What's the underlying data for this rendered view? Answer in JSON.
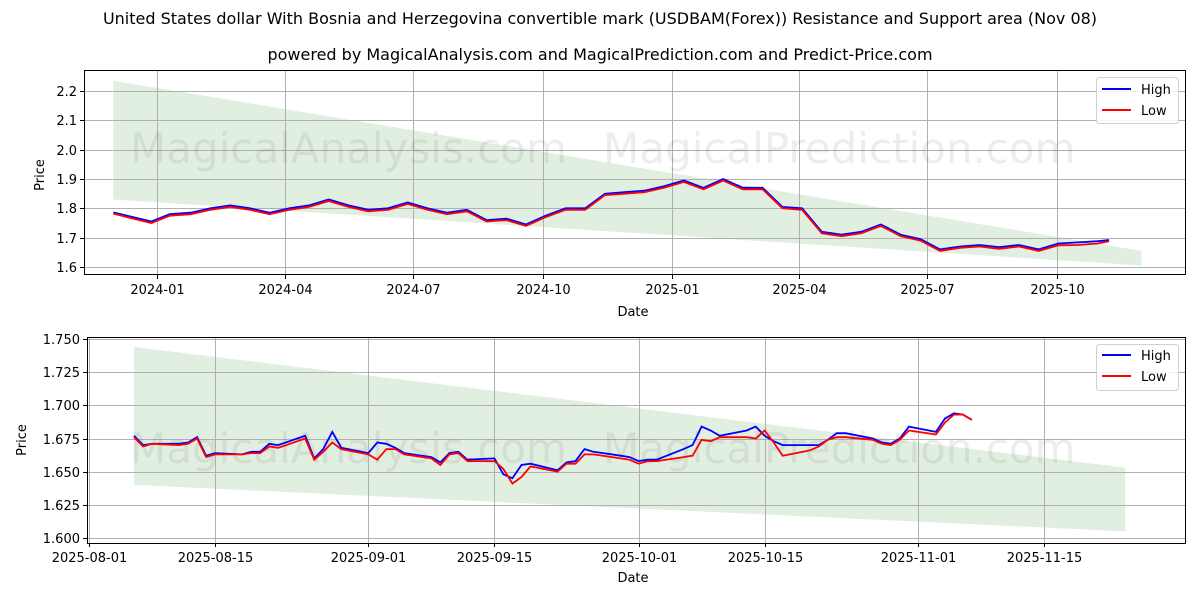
{
  "header": {
    "title": "United States dollar With Bosnia and Herzegovina convertible mark (USDBAM(Forex)) Resistance and Support area (Nov 08)",
    "subtitle": "powered by MagicalAnalysis.com and MagicalPrediction.com and Predict-Price.com"
  },
  "watermarks": [
    "MagicalAnalysis.com",
    "MagicalPrediction.com"
  ],
  "colors": {
    "high": "#0000ff",
    "low": "#ff0000",
    "band": "#e1efe1",
    "grid": "#b0b0b0"
  },
  "chart_data": [
    {
      "type": "line",
      "title": "",
      "xlabel": "Date",
      "ylabel": "Price",
      "ylim": [
        1.57,
        2.26
      ],
      "grid": true,
      "legend_position": "upper right",
      "legend": [
        "High",
        "Low"
      ],
      "x_tick_labels": [
        "2024-01",
        "2024-04",
        "2024-07",
        "2024-10",
        "2025-01",
        "2025-04",
        "2025-07",
        "2025-10"
      ],
      "y_tick_labels": [
        "1.6",
        "1.7",
        "1.8",
        "1.9",
        "2.0",
        "2.1",
        "2.2"
      ],
      "band": {
        "label": "Resistance and Support area",
        "x_start": "2023-12-01",
        "x_end": "2025-11-30",
        "upper_start": 2.235,
        "upper_end": 1.655,
        "lower_start": 1.83,
        "lower_end": 1.605
      },
      "x": [
        "2023-12-01",
        "2023-12-15",
        "2023-12-28",
        "2024-01-10",
        "2024-01-25",
        "2024-02-08",
        "2024-02-22",
        "2024-03-07",
        "2024-03-21",
        "2024-04-04",
        "2024-04-18",
        "2024-05-02",
        "2024-05-16",
        "2024-05-30",
        "2024-06-13",
        "2024-06-27",
        "2024-07-11",
        "2024-07-25",
        "2024-08-08",
        "2024-08-22",
        "2024-09-05",
        "2024-09-19",
        "2024-10-03",
        "2024-10-17",
        "2024-10-31",
        "2024-11-14",
        "2024-11-28",
        "2024-12-12",
        "2024-12-26",
        "2025-01-09",
        "2025-01-23",
        "2025-02-06",
        "2025-02-20",
        "2025-03-06",
        "2025-03-20",
        "2025-04-03",
        "2025-04-17",
        "2025-05-01",
        "2025-05-15",
        "2025-05-29",
        "2025-06-12",
        "2025-06-26",
        "2025-07-10",
        "2025-07-24",
        "2025-08-07",
        "2025-08-21",
        "2025-09-04",
        "2025-09-18",
        "2025-10-02",
        "2025-10-16",
        "2025-10-30",
        "2025-11-07"
      ],
      "series": [
        {
          "name": "High",
          "values": [
            1.786,
            1.77,
            1.755,
            1.78,
            1.785,
            1.8,
            1.81,
            1.8,
            1.785,
            1.8,
            1.81,
            1.83,
            1.81,
            1.795,
            1.8,
            1.82,
            1.8,
            1.785,
            1.795,
            1.76,
            1.765,
            1.745,
            1.775,
            1.8,
            1.8,
            1.85,
            1.855,
            1.86,
            1.875,
            1.895,
            1.87,
            1.9,
            1.87,
            1.87,
            1.805,
            1.8,
            1.72,
            1.71,
            1.72,
            1.745,
            1.71,
            1.695,
            1.66,
            1.67,
            1.675,
            1.668,
            1.675,
            1.66,
            1.68,
            1.684,
            1.688,
            1.692
          ]
        },
        {
          "name": "Low",
          "values": [
            1.782,
            1.765,
            1.75,
            1.775,
            1.78,
            1.795,
            1.805,
            1.795,
            1.78,
            1.795,
            1.805,
            1.825,
            1.805,
            1.79,
            1.795,
            1.815,
            1.795,
            1.78,
            1.79,
            1.755,
            1.76,
            1.74,
            1.77,
            1.795,
            1.795,
            1.845,
            1.85,
            1.855,
            1.87,
            1.89,
            1.865,
            1.895,
            1.865,
            1.865,
            1.8,
            1.795,
            1.715,
            1.705,
            1.715,
            1.74,
            1.705,
            1.69,
            1.655,
            1.665,
            1.67,
            1.662,
            1.67,
            1.655,
            1.674,
            1.675,
            1.68,
            1.688
          ]
        }
      ]
    },
    {
      "type": "line",
      "title": "",
      "xlabel": "Date",
      "ylabel": "Price",
      "ylim": [
        1.599,
        1.751
      ],
      "grid": true,
      "legend_position": "upper right",
      "legend": [
        "High",
        "Low"
      ],
      "x_tick_labels": [
        "2025-08-01",
        "2025-08-15",
        "2025-09-01",
        "2025-09-15",
        "2025-10-01",
        "2025-10-15",
        "2025-11-01",
        "2025-11-15"
      ],
      "y_tick_labels": [
        "1.600",
        "1.625",
        "1.650",
        "1.675",
        "1.700",
        "1.725",
        "1.750"
      ],
      "band": {
        "label": "Resistance and Support area",
        "x_start": "2025-08-06",
        "x_end": "2025-11-24",
        "upper_start": 1.744,
        "upper_end": 1.653,
        "lower_start": 1.64,
        "lower_end": 1.605
      },
      "x": [
        "2025-08-06",
        "2025-08-07",
        "2025-08-08",
        "2025-08-11",
        "2025-08-12",
        "2025-08-13",
        "2025-08-14",
        "2025-08-15",
        "2025-08-18",
        "2025-08-19",
        "2025-08-20",
        "2025-08-21",
        "2025-08-22",
        "2025-08-25",
        "2025-08-26",
        "2025-08-27",
        "2025-08-28",
        "2025-08-29",
        "2025-09-01",
        "2025-09-02",
        "2025-09-03",
        "2025-09-04",
        "2025-09-05",
        "2025-09-08",
        "2025-09-09",
        "2025-09-10",
        "2025-09-11",
        "2025-09-12",
        "2025-09-15",
        "2025-09-16",
        "2025-09-17",
        "2025-09-18",
        "2025-09-19",
        "2025-09-22",
        "2025-09-23",
        "2025-09-24",
        "2025-09-25",
        "2025-09-26",
        "2025-09-29",
        "2025-09-30",
        "2025-10-01",
        "2025-10-02",
        "2025-10-03",
        "2025-10-06",
        "2025-10-07",
        "2025-10-08",
        "2025-10-09",
        "2025-10-10",
        "2025-10-13",
        "2025-10-14",
        "2025-10-15",
        "2025-10-16",
        "2025-10-17",
        "2025-10-20",
        "2025-10-21",
        "2025-10-22",
        "2025-10-23",
        "2025-10-24",
        "2025-10-27",
        "2025-10-28",
        "2025-10-29",
        "2025-10-30",
        "2025-10-31",
        "2025-11-03",
        "2025-11-04",
        "2025-11-05",
        "2025-11-06",
        "2025-11-07"
      ],
      "series": [
        {
          "name": "High",
          "values": [
            1.677,
            1.67,
            1.671,
            1.671,
            1.672,
            1.676,
            1.662,
            1.664,
            1.663,
            1.665,
            1.665,
            1.671,
            1.67,
            1.677,
            1.66,
            1.667,
            1.68,
            1.668,
            1.664,
            1.672,
            1.671,
            1.668,
            1.664,
            1.661,
            1.657,
            1.664,
            1.665,
            1.659,
            1.66,
            1.648,
            1.645,
            1.655,
            1.656,
            1.651,
            1.657,
            1.658,
            1.667,
            1.665,
            1.662,
            1.661,
            1.658,
            1.659,
            1.659,
            1.667,
            1.67,
            1.684,
            1.681,
            1.677,
            1.681,
            1.684,
            1.677,
            1.673,
            1.67,
            1.67,
            1.67,
            1.674,
            1.679,
            1.679,
            1.675,
            1.672,
            1.671,
            1.675,
            1.684,
            1.68,
            1.69,
            1.694,
            1.693,
            1.689
          ]
        },
        {
          "name": "Low",
          "values": [
            1.676,
            1.669,
            1.671,
            1.67,
            1.671,
            1.675,
            1.661,
            1.663,
            1.663,
            1.664,
            1.664,
            1.669,
            1.668,
            1.675,
            1.659,
            1.665,
            1.672,
            1.667,
            1.663,
            1.659,
            1.667,
            1.667,
            1.663,
            1.66,
            1.655,
            1.663,
            1.664,
            1.658,
            1.658,
            1.652,
            1.641,
            1.646,
            1.654,
            1.65,
            1.656,
            1.656,
            1.663,
            1.663,
            1.66,
            1.659,
            1.656,
            1.658,
            1.658,
            1.661,
            1.662,
            1.674,
            1.673,
            1.676,
            1.676,
            1.675,
            1.681,
            1.672,
            1.662,
            1.666,
            1.669,
            1.674,
            1.676,
            1.676,
            1.674,
            1.671,
            1.67,
            1.674,
            1.681,
            1.678,
            1.687,
            1.693,
            1.693,
            1.689
          ]
        }
      ]
    }
  ]
}
